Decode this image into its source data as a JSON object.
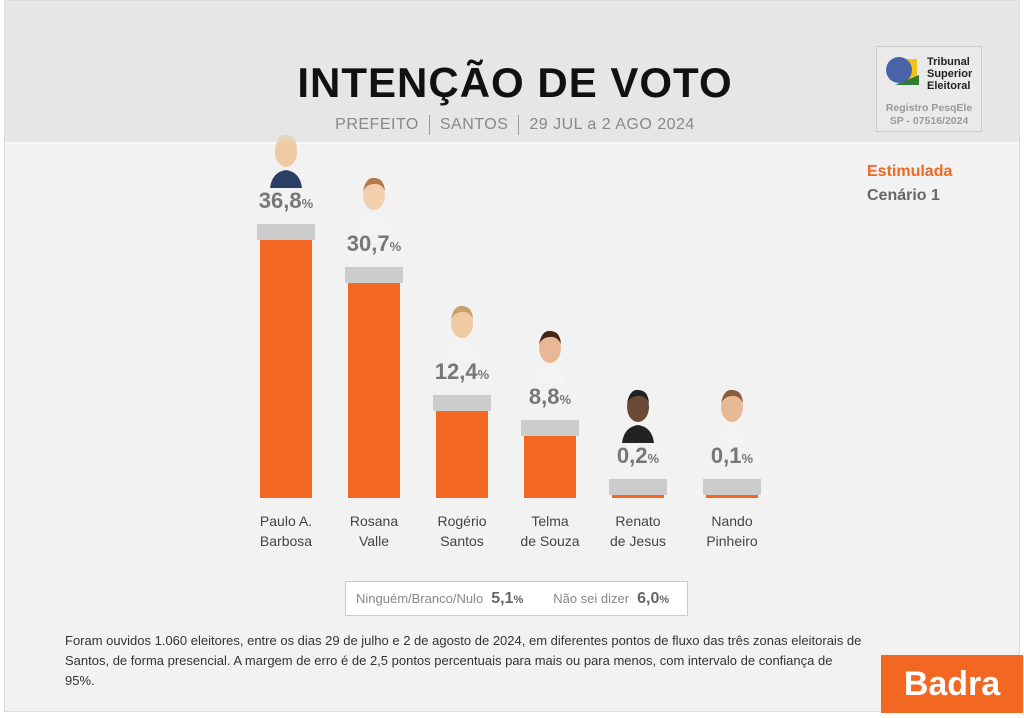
{
  "header": {
    "title": "INTENÇÃO DE VOTO",
    "office": "PREFEITO",
    "city": "SANTOS",
    "period": "29 JUL a 2 AGO 2024"
  },
  "tse": {
    "name_lines": [
      "Tribunal",
      "Superior",
      "Eleitoral"
    ],
    "registry_label": "Registro PesqEle",
    "registry_number": "SP - 07516/2024"
  },
  "scenario": {
    "type": "Estimulada",
    "name": "Cenário 1"
  },
  "colors": {
    "bar": "#f26722",
    "cap": "#cccccc",
    "accent": "#f26722"
  },
  "chart_data": {
    "type": "bar",
    "title": "INTENÇÃO DE VOTO",
    "categories": [
      "Paulo A. Barbosa",
      "Rosana Valle",
      "Rogério Santos",
      "Telma de Souza",
      "Renato de Jesus",
      "Nando Pinheiro"
    ],
    "label_lines": [
      [
        "Paulo A.",
        "Barbosa"
      ],
      [
        "Rosana",
        "Valle"
      ],
      [
        "Rogério",
        "Santos"
      ],
      [
        "Telma",
        "de Souza"
      ],
      [
        "Renato",
        "de Jesus"
      ],
      [
        "Nando",
        "Pinheiro"
      ]
    ],
    "values": [
      36.8,
      30.7,
      12.4,
      8.8,
      0.2,
      0.1
    ],
    "value_labels": [
      "36,8",
      "30,7",
      "12,4",
      "8,8",
      "0,2",
      "0,1"
    ],
    "unit": "%",
    "ylim": [
      0,
      40
    ],
    "grid": false
  },
  "others": {
    "blank_label": "Ninguém/Branco/Nulo",
    "blank_value": "5,1",
    "unsure_label": "Não sei dizer",
    "unsure_value": "6,0",
    "unit": "%"
  },
  "note": "Foram ouvidos 1.060 eleitores, entre os dias 29 de julho e 2 de agosto de 2024, em diferentes pontos de fluxo das três zonas eleitorais de Santos, de forma presencial. A margem de erro é de 2,5 pontos percentuais para mais ou para menos, com intervalo de confiança de 95%.",
  "brand": "Badra"
}
